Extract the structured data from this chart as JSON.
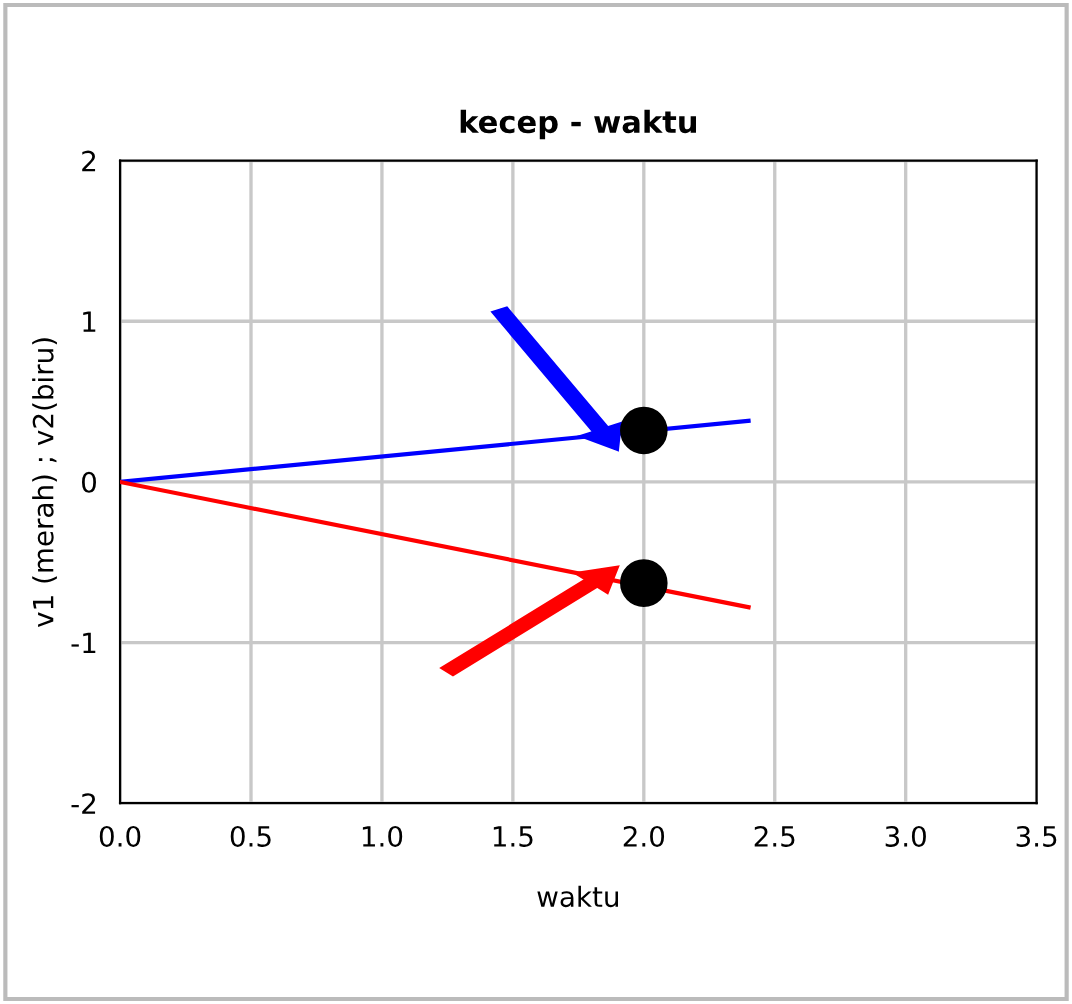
{
  "chart_data": {
    "type": "line",
    "title": "kecep - waktu",
    "xlabel": "waktu",
    "ylabel": "v1 (merah) ; v2(biru)",
    "series": [
      {
        "color": "#0000ff",
        "x": [
          0,
          2.4
        ],
        "values": [
          0,
          0.38
        ]
      },
      {
        "color": "#ff0000",
        "x": [
          0,
          2.4
        ],
        "values": [
          0,
          -0.78
        ]
      },
      {
        "type": "scatter",
        "color": "#000000",
        "x": [
          2.0,
          2.0
        ],
        "values": [
          0.32,
          -0.63
        ],
        "marker": "circle"
      }
    ],
    "xlim": [
      0,
      3.5
    ],
    "ylim": [
      -2,
      2
    ],
    "xticks": [
      {
        "value": 0,
        "label": "0.0"
      },
      {
        "value": 0.5,
        "label": "0.5"
      },
      {
        "value": 1,
        "label": "1.0"
      },
      {
        "value": 1.5,
        "label": "1.5"
      },
      {
        "value": 2,
        "label": "2.0"
      },
      {
        "value": 2.5,
        "label": "2.5"
      },
      {
        "value": 3,
        "label": "3.0"
      },
      {
        "value": 3.5,
        "label": "3.5"
      }
    ],
    "yticks": [
      -2,
      -1,
      0,
      1,
      2
    ],
    "grid": true,
    "marker": "none",
    "line_style": "solid"
  }
}
